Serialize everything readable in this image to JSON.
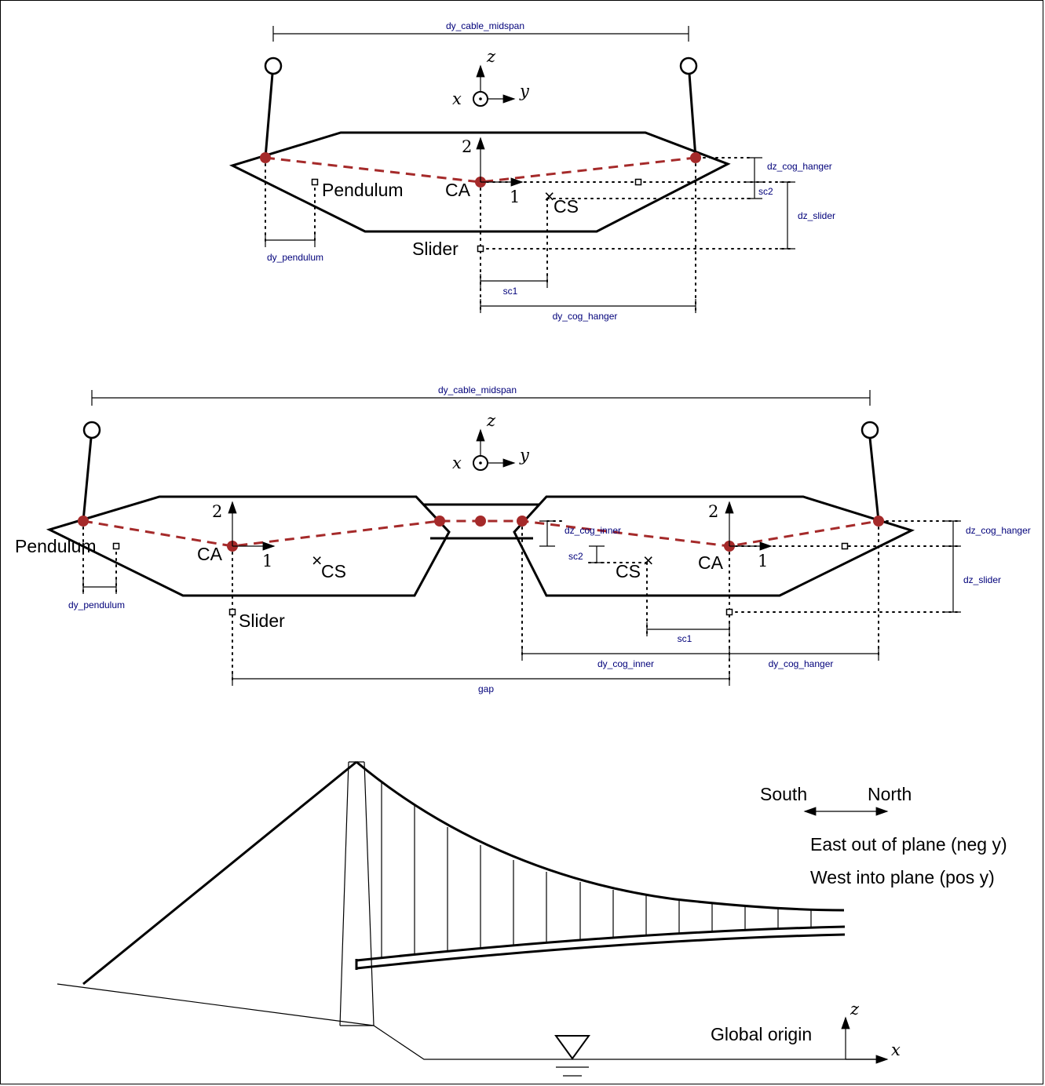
{
  "top_section": {
    "dims": {
      "cable_midspan": "dy_cable_midspan",
      "cog_hanger_z": "dz_cog_hanger",
      "sc2": "sc2",
      "slider_z": "dz_slider",
      "pendulum_y": "dy_pendulum",
      "sc1": "sc1",
      "cog_hanger_y": "dy_cog_hanger"
    },
    "labels": {
      "pendulum": "Pendulum",
      "ca": "CA",
      "cs": "CS",
      "slider": "Slider",
      "axis1": "1",
      "axis2": "2"
    },
    "axes": {
      "x": "x",
      "y": "y",
      "z": "z"
    }
  },
  "twin_section": {
    "dims": {
      "cable_midspan": "dy_cable_midspan",
      "cog_inner_z": "dz_cog_inner",
      "sc2": "sc2",
      "cog_hanger_z": "dz_cog_hanger",
      "slider_z": "dz_slider",
      "pendulum_y": "dy_pendulum",
      "sc1": "sc1",
      "cog_inner_y": "dy_cog_inner",
      "cog_hanger_y": "dy_cog_hanger",
      "gap": "gap"
    },
    "labels": {
      "pendulum": "Pendulum",
      "ca_left": "CA",
      "ca_right": "CA",
      "cs_left": "CS",
      "cs_right": "CS",
      "slider": "Slider",
      "axis1_left": "1",
      "axis2_left": "2",
      "axis1_right": "1",
      "axis2_right": "2"
    },
    "axes": {
      "x": "x",
      "y": "y",
      "z": "z"
    }
  },
  "elevation": {
    "south": "South",
    "north": "North",
    "east_note": "East out of plane (neg y)",
    "west_note": "West into plane (pos y)",
    "origin": "Global origin",
    "axes": {
      "x": "x",
      "z": "z"
    }
  },
  "colors": {
    "beam": "#a52a2a",
    "dimension_text": "#00007a",
    "outline": "#000000"
  }
}
